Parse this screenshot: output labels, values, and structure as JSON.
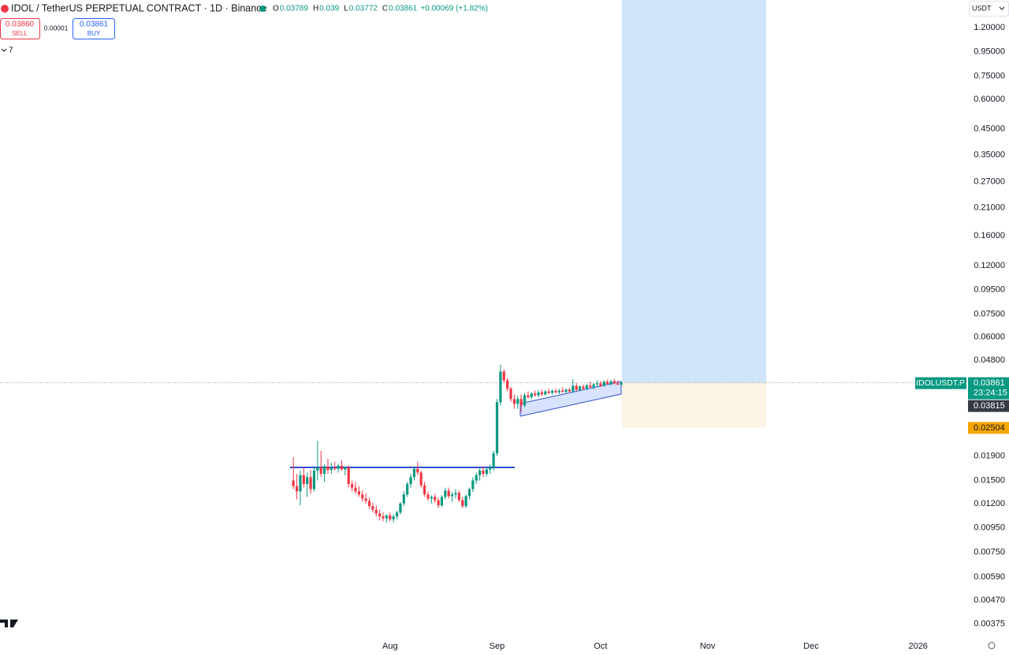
{
  "chart_data": {
    "type": "candlestick",
    "title": "IDOL / TetherUS PERPETUAL CONTRACT · 1D · Binance",
    "legend_letters": [
      "O",
      "H",
      "L",
      "C"
    ],
    "change": "+0.00069 (+1.82%)",
    "sell_price": "0.03860",
    "sell": "SELL",
    "spread": "0.00001",
    "buy_price": "0.03861",
    "buy": "BUY",
    "indicator_count": "7",
    "currency": "USDT",
    "symbol_label": "IDOLUSDT.P",
    "last_price": 0.03861,
    "countdown": "23:24:15",
    "prev_price": 0.03815,
    "stop_price": 0.02504,
    "up_color": "#089981",
    "down_color": "#f23645",
    "log_scale": true,
    "ylim": [
      0.00338,
      1.567
    ],
    "yticks": [
      {
        "value": 1.2,
        "label": "1.20000"
      },
      {
        "value": 0.95,
        "label": "0.95000"
      },
      {
        "value": 0.75,
        "label": "0.75000"
      },
      {
        "value": 0.6,
        "label": "0.60000"
      },
      {
        "value": 0.45,
        "label": "0.45000"
      },
      {
        "value": 0.35,
        "label": "0.35000"
      },
      {
        "value": 0.27,
        "label": "0.27000"
      },
      {
        "value": 0.21,
        "label": "0.21000"
      },
      {
        "value": 0.16,
        "label": "0.16000"
      },
      {
        "value": 0.12,
        "label": "0.12000"
      },
      {
        "value": 0.095,
        "label": "0.09500"
      },
      {
        "value": 0.075,
        "label": "0.07500"
      },
      {
        "value": 0.06,
        "label": "0.06000"
      },
      {
        "value": 0.048,
        "label": "0.04800"
      },
      {
        "value": 0.019,
        "label": "0.01900"
      },
      {
        "value": 0.015,
        "label": "0.01500"
      },
      {
        "value": 0.012,
        "label": "0.01200"
      },
      {
        "value": 0.0095,
        "label": "0.00950"
      },
      {
        "value": 0.0075,
        "label": "0.00750"
      },
      {
        "value": 0.0059,
        "label": "0.00590"
      },
      {
        "value": 0.0047,
        "label": "0.00470"
      },
      {
        "value": 0.00375,
        "label": "0.00375"
      }
    ],
    "xlim": [
      -85,
      195
    ],
    "xticks": [
      {
        "value": 28,
        "label": "Aug"
      },
      {
        "value": 59,
        "label": "Sep"
      },
      {
        "value": 89,
        "label": "Oct"
      },
      {
        "value": 120,
        "label": "Nov"
      },
      {
        "value": 150,
        "label": "Dec"
      },
      {
        "value": 181,
        "label": "2026"
      }
    ],
    "ohlc": [
      [
        0.015,
        0.0188,
        0.0138,
        0.0142
      ],
      [
        0.0142,
        0.016,
        0.0125,
        0.0135
      ],
      [
        0.0135,
        0.0165,
        0.0118,
        0.0158
      ],
      [
        0.0158,
        0.017,
        0.014,
        0.0145
      ],
      [
        0.0145,
        0.0162,
        0.0128,
        0.0155
      ],
      [
        0.0155,
        0.0166,
        0.0132,
        0.0138
      ],
      [
        0.0138,
        0.0172,
        0.0135,
        0.0165
      ],
      [
        0.0165,
        0.022,
        0.015,
        0.017
      ],
      [
        0.017,
        0.02,
        0.0155,
        0.016
      ],
      [
        0.016,
        0.0175,
        0.0148,
        0.0172
      ],
      [
        0.0172,
        0.0185,
        0.016,
        0.0166
      ],
      [
        0.0166,
        0.0178,
        0.016,
        0.017
      ],
      [
        0.017,
        0.018,
        0.0165,
        0.0168
      ],
      [
        0.0168,
        0.0176,
        0.0162,
        0.0173
      ],
      [
        0.0173,
        0.0182,
        0.0165,
        0.0167
      ],
      [
        0.0167,
        0.0172,
        0.0158,
        0.017
      ],
      [
        0.017,
        0.0174,
        0.014,
        0.0145
      ],
      [
        0.0145,
        0.015,
        0.0135,
        0.014
      ],
      [
        0.014,
        0.0148,
        0.0132,
        0.0135
      ],
      [
        0.0135,
        0.0142,
        0.0128,
        0.0131
      ],
      [
        0.0131,
        0.0136,
        0.0122,
        0.0126
      ],
      [
        0.0126,
        0.0132,
        0.012,
        0.0123
      ],
      [
        0.0123,
        0.0127,
        0.0114,
        0.0117
      ],
      [
        0.0117,
        0.0121,
        0.011,
        0.0113
      ],
      [
        0.0113,
        0.0118,
        0.0106,
        0.0109
      ],
      [
        0.0109,
        0.0113,
        0.0102,
        0.0106
      ],
      [
        0.0106,
        0.011,
        0.0101,
        0.0104
      ],
      [
        0.0104,
        0.0108,
        0.01,
        0.0107
      ],
      [
        0.0107,
        0.011,
        0.0101,
        0.0103
      ],
      [
        0.0103,
        0.0108,
        0.01,
        0.0106
      ],
      [
        0.0106,
        0.0112,
        0.0103,
        0.011
      ],
      [
        0.011,
        0.0122,
        0.0108,
        0.012
      ],
      [
        0.012,
        0.0135,
        0.0117,
        0.0131
      ],
      [
        0.0131,
        0.0148,
        0.0128,
        0.0145
      ],
      [
        0.0145,
        0.016,
        0.014,
        0.0155
      ],
      [
        0.0155,
        0.0172,
        0.015,
        0.0168
      ],
      [
        0.0168,
        0.018,
        0.0158,
        0.0162
      ],
      [
        0.0162,
        0.0165,
        0.014,
        0.0143
      ],
      [
        0.0143,
        0.0148,
        0.0128,
        0.0131
      ],
      [
        0.0131,
        0.0135,
        0.0123,
        0.0126
      ],
      [
        0.0126,
        0.013,
        0.012,
        0.0128
      ],
      [
        0.0128,
        0.0132,
        0.0121,
        0.0124
      ],
      [
        0.0124,
        0.0127,
        0.0115,
        0.0118
      ],
      [
        0.0118,
        0.013,
        0.0116,
        0.0128
      ],
      [
        0.0128,
        0.014,
        0.0125,
        0.0136
      ],
      [
        0.0136,
        0.014,
        0.0126,
        0.0129
      ],
      [
        0.0129,
        0.0134,
        0.0122,
        0.0131
      ],
      [
        0.0131,
        0.0138,
        0.0126,
        0.0133
      ],
      [
        0.0133,
        0.0136,
        0.0122,
        0.0124
      ],
      [
        0.0124,
        0.0128,
        0.0115,
        0.0117
      ],
      [
        0.0117,
        0.0131,
        0.0115,
        0.0129
      ],
      [
        0.0129,
        0.014,
        0.0125,
        0.0138
      ],
      [
        0.0138,
        0.0155,
        0.0134,
        0.015
      ],
      [
        0.015,
        0.0162,
        0.0145,
        0.0158
      ],
      [
        0.0158,
        0.017,
        0.015,
        0.0165
      ],
      [
        0.0165,
        0.0172,
        0.0155,
        0.016
      ],
      [
        0.016,
        0.017,
        0.0156,
        0.0167
      ],
      [
        0.0167,
        0.0175,
        0.016,
        0.017
      ],
      [
        0.017,
        0.02,
        0.0165,
        0.0195
      ],
      [
        0.0195,
        0.033,
        0.019,
        0.032
      ],
      [
        0.032,
        0.046,
        0.031,
        0.043
      ],
      [
        0.043,
        0.044,
        0.0385,
        0.0395
      ],
      [
        0.0395,
        0.0405,
        0.0355,
        0.0365
      ],
      [
        0.0365,
        0.037,
        0.032,
        0.033
      ],
      [
        0.033,
        0.0345,
        0.03,
        0.0315
      ],
      [
        0.0315,
        0.034,
        0.03,
        0.033
      ],
      [
        0.033,
        0.0345,
        0.029,
        0.031
      ],
      [
        0.031,
        0.035,
        0.0305,
        0.0342
      ],
      [
        0.0342,
        0.0355,
        0.033,
        0.0336
      ],
      [
        0.0336,
        0.0352,
        0.033,
        0.0348
      ],
      [
        0.0348,
        0.0358,
        0.0338,
        0.0342
      ],
      [
        0.0342,
        0.036,
        0.0336,
        0.0352
      ],
      [
        0.0352,
        0.0362,
        0.034,
        0.0345
      ],
      [
        0.0345,
        0.036,
        0.034,
        0.0355
      ],
      [
        0.0355,
        0.0365,
        0.0345,
        0.035
      ],
      [
        0.035,
        0.0362,
        0.0344,
        0.0357
      ],
      [
        0.0357,
        0.0366,
        0.0348,
        0.0352
      ],
      [
        0.0352,
        0.0364,
        0.0346,
        0.0358
      ],
      [
        0.0358,
        0.037,
        0.035,
        0.0354
      ],
      [
        0.0354,
        0.0366,
        0.0348,
        0.0361
      ],
      [
        0.0361,
        0.0368,
        0.035,
        0.0355
      ],
      [
        0.0355,
        0.04,
        0.035,
        0.0375
      ],
      [
        0.0375,
        0.0385,
        0.0355,
        0.036
      ],
      [
        0.036,
        0.0378,
        0.0356,
        0.0372
      ],
      [
        0.0372,
        0.038,
        0.036,
        0.0365
      ],
      [
        0.0365,
        0.0382,
        0.036,
        0.0376
      ],
      [
        0.0376,
        0.039,
        0.0365,
        0.037
      ],
      [
        0.037,
        0.0385,
        0.0362,
        0.038
      ],
      [
        0.038,
        0.0395,
        0.0372,
        0.0384
      ],
      [
        0.0384,
        0.0392,
        0.037,
        0.0375
      ],
      [
        0.0375,
        0.0395,
        0.0372,
        0.039
      ],
      [
        0.039,
        0.0398,
        0.0378,
        0.0382
      ],
      [
        0.0382,
        0.0396,
        0.0376,
        0.0392
      ],
      [
        0.0392,
        0.04,
        0.038,
        0.0384
      ],
      [
        0.0384,
        0.0395,
        0.0378,
        0.0379
      ],
      [
        0.03789,
        0.039,
        0.03772,
        0.03861
      ]
    ]
  }
}
